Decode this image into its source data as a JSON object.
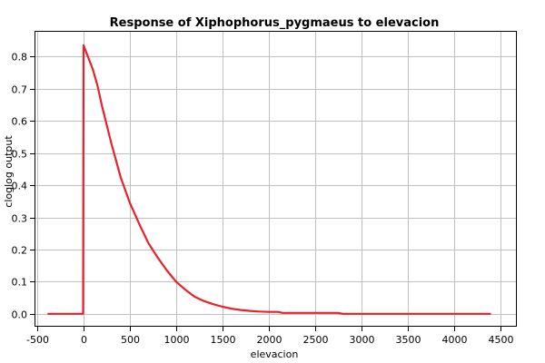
{
  "chart_data": {
    "type": "line",
    "title": "Response of Xiphophorus_pygmaeus to elevacion",
    "xlabel": "elevacion",
    "ylabel": "cloglog output",
    "xlim": [
      -530,
      4680
    ],
    "ylim": [
      -0.04,
      0.88
    ],
    "xticks": [
      -500,
      0,
      500,
      1000,
      1500,
      2000,
      2500,
      3000,
      3500,
      4000,
      4500
    ],
    "yticks": [
      0.0,
      0.1,
      0.2,
      0.3,
      0.4,
      0.5,
      0.6,
      0.7,
      0.8
    ],
    "tick_labels_x": [
      "-500",
      "0",
      "500",
      "1000",
      "1500",
      "2000",
      "2500",
      "3000",
      "3500",
      "4000",
      "4500"
    ],
    "tick_labels_y": [
      "0.0",
      "0.1",
      "0.2",
      "0.3",
      "0.4",
      "0.5",
      "0.6",
      "0.7",
      "0.8"
    ],
    "grid": true,
    "line_color": "#e8212b",
    "series": [
      {
        "x": [
          -390,
          -5,
          0,
          100,
          150,
          200,
          300,
          400,
          500,
          600,
          700,
          800,
          900,
          1000,
          1100,
          1200,
          1300,
          1400,
          1500,
          1600,
          1700,
          1800,
          1900,
          2000,
          2100,
          2150,
          2200,
          2400,
          2600,
          2750,
          2800,
          3000,
          3500,
          4000,
          4400
        ],
        "y": [
          0.0,
          0.0,
          0.835,
          0.76,
          0.71,
          0.645,
          0.53,
          0.425,
          0.345,
          0.28,
          0.22,
          0.175,
          0.135,
          0.1,
          0.075,
          0.053,
          0.04,
          0.03,
          0.022,
          0.016,
          0.012,
          0.009,
          0.007,
          0.006,
          0.006,
          0.003,
          0.003,
          0.003,
          0.003,
          0.003,
          0.0,
          0.0,
          0.0,
          0.0,
          0.0
        ]
      }
    ]
  }
}
